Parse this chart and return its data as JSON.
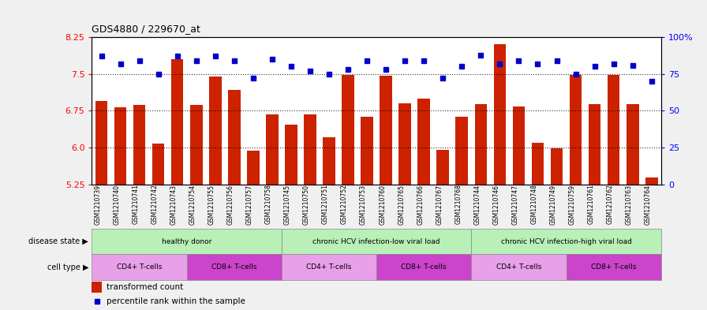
{
  "title": "GDS4880 / 229670_at",
  "samples": [
    "GSM1210739",
    "GSM1210740",
    "GSM1210741",
    "GSM1210742",
    "GSM1210743",
    "GSM1210754",
    "GSM1210755",
    "GSM1210756",
    "GSM1210757",
    "GSM1210758",
    "GSM1210745",
    "GSM1210750",
    "GSM1210751",
    "GSM1210752",
    "GSM1210753",
    "GSM1210760",
    "GSM1210765",
    "GSM1210766",
    "GSM1210767",
    "GSM1210768",
    "GSM1210744",
    "GSM1210746",
    "GSM1210747",
    "GSM1210748",
    "GSM1210749",
    "GSM1210759",
    "GSM1210761",
    "GSM1210762",
    "GSM1210763",
    "GSM1210764"
  ],
  "bar_values": [
    6.95,
    6.82,
    6.87,
    6.08,
    7.8,
    6.87,
    7.45,
    7.17,
    5.93,
    6.67,
    6.47,
    6.68,
    6.2,
    7.48,
    6.63,
    7.46,
    6.9,
    7.0,
    5.95,
    6.62,
    6.88,
    8.1,
    6.83,
    6.1,
    5.98,
    7.48,
    6.88,
    7.48,
    6.88,
    5.38
  ],
  "percentile_values": [
    87,
    82,
    84,
    75,
    87,
    84,
    87,
    84,
    72,
    85,
    80,
    77,
    75,
    78,
    84,
    78,
    84,
    84,
    72,
    80,
    88,
    82,
    84,
    82,
    84,
    75,
    80,
    82,
    81,
    70
  ],
  "ylim_left": [
    5.25,
    8.25
  ],
  "ylim_right": [
    0,
    100
  ],
  "yticks_left": [
    5.25,
    6.0,
    6.75,
    7.5,
    8.25
  ],
  "yticks_right": [
    0,
    25,
    50,
    75,
    100
  ],
  "bar_color": "#cc2200",
  "dot_color": "#0000cc",
  "fig_bg": "#f0f0f0",
  "plot_bg": "#ffffff",
  "disease_groups": [
    {
      "label": "healthy donor",
      "start": 0,
      "end": 9,
      "color": "#b8f0b8"
    },
    {
      "label": "chronic HCV infection-low viral load",
      "start": 10,
      "end": 19,
      "color": "#b8f0b8"
    },
    {
      "label": "chronic HCV infection-high viral load",
      "start": 20,
      "end": 29,
      "color": "#b8f0b8"
    }
  ],
  "cell_groups": [
    {
      "label": "CD4+ T-cells",
      "start": 0,
      "end": 4,
      "color": "#e8a0e8"
    },
    {
      "label": "CD8+ T-cells",
      "start": 5,
      "end": 9,
      "color": "#cc44cc"
    },
    {
      "label": "CD4+ T-cells",
      "start": 10,
      "end": 14,
      "color": "#e8a0e8"
    },
    {
      "label": "CD8+ T-cells",
      "start": 15,
      "end": 19,
      "color": "#cc44cc"
    },
    {
      "label": "CD4+ T-cells",
      "start": 20,
      "end": 24,
      "color": "#e8a0e8"
    },
    {
      "label": "CD8+ T-cells",
      "start": 25,
      "end": 29,
      "color": "#cc44cc"
    }
  ]
}
